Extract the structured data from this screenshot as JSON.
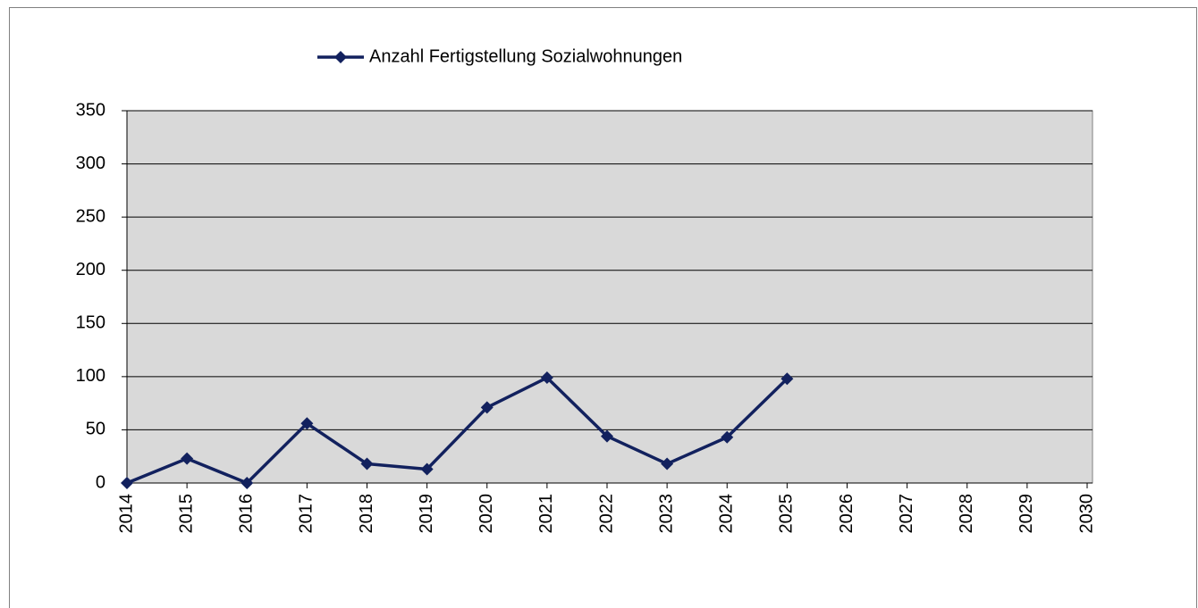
{
  "chart_data": {
    "type": "line",
    "x": [
      2014,
      2015,
      2016,
      2017,
      2018,
      2019,
      2020,
      2021,
      2022,
      2023,
      2024,
      2025
    ],
    "series": [
      {
        "name": "Anzahl Fertigstellung Sozialwohnungen",
        "color": "#12215e",
        "values": [
          0,
          23,
          0,
          56,
          18,
          13,
          71,
          99,
          44,
          18,
          43,
          98
        ]
      }
    ],
    "xlim": [
      2014,
      2030
    ],
    "xticks": [
      2014,
      2015,
      2016,
      2017,
      2018,
      2019,
      2020,
      2021,
      2022,
      2023,
      2024,
      2025,
      2026,
      2027,
      2028,
      2029,
      2030
    ],
    "ylim": [
      0,
      350
    ],
    "yticks": [
      0,
      50,
      100,
      150,
      200,
      250,
      300,
      350
    ],
    "grid": true,
    "legend": "top"
  }
}
